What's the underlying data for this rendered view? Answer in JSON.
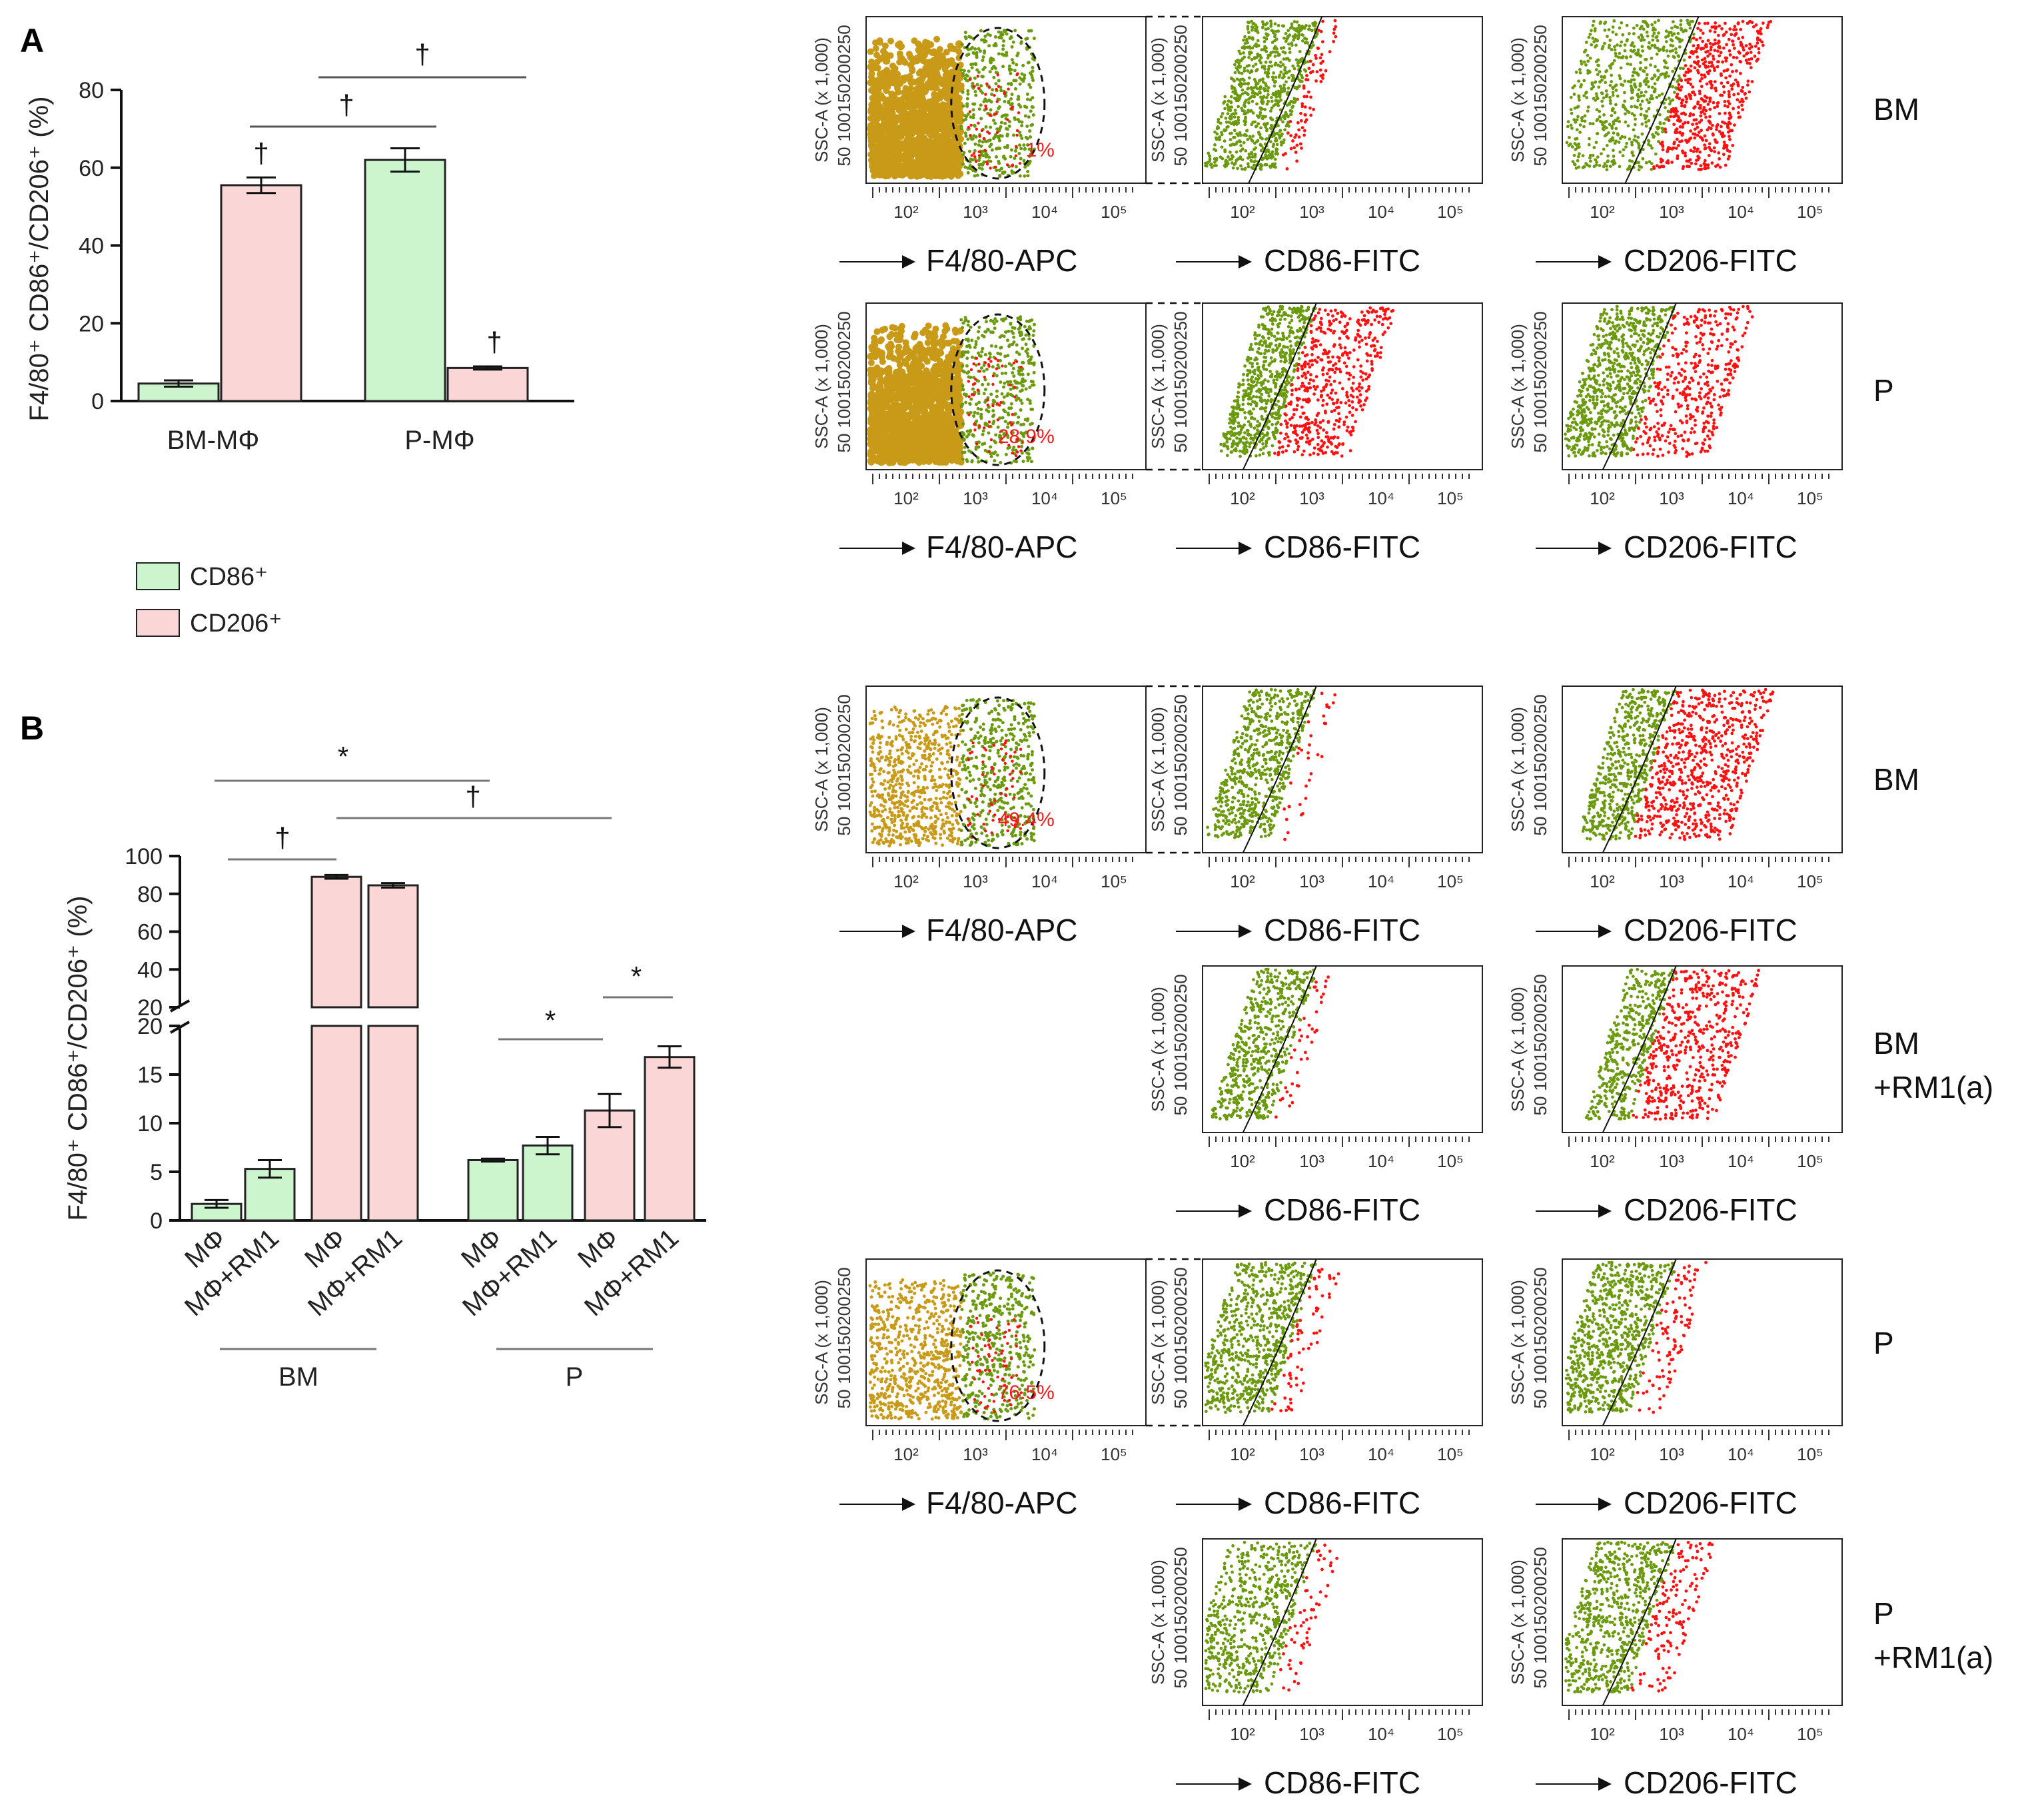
{
  "figure": {
    "panel_a_letter": "A",
    "panel_b_letter": "B",
    "legend": {
      "cd86": {
        "label": "CD86⁺",
        "color": "#cdf5cd"
      },
      "cd206": {
        "label": "CD206⁺",
        "color": "#fbd6d6"
      }
    },
    "colors": {
      "cd86_fill": "#cdf5cd",
      "cd206_fill": "#fbd6d6",
      "gate_population": "#c99a17",
      "positive_green": "#6b9a0e",
      "positive_red": "#ff1111",
      "annotation_red": "#ee1c1c"
    },
    "flow_axis": {
      "y_label": "SSC-A (x 1,000)",
      "y_ticks": [
        "50",
        "100",
        "150",
        "200",
        "250"
      ],
      "x_ticks": [
        "10²",
        "10³",
        "10⁴",
        "10⁵"
      ],
      "labels": {
        "f480": "F4/80-APC",
        "cd86": "CD86-FITC",
        "cd206": "CD206-FITC"
      }
    },
    "flow_rows": [
      {
        "label": "BM",
        "f480_percent": "1%"
      },
      {
        "label": "P",
        "f480_percent": "28.9%"
      },
      {
        "label": "BM",
        "f480_percent": "49.4%"
      },
      {
        "label": "BM\n+RM1(a)",
        "line1": "BM",
        "line2": "+RM1(a)"
      },
      {
        "label": "P",
        "f480_percent": "76.5%"
      },
      {
        "label": "P\n+RM1(a)",
        "line1": "P",
        "line2": "+RM1(a)"
      }
    ]
  },
  "chart_data": [
    {
      "type": "bar",
      "panel": "A",
      "title": "",
      "ylabel": "F4/80⁺ CD86⁺/CD206⁺ (%)",
      "ylim": [
        0,
        80
      ],
      "yticks": [
        "0",
        "20",
        "40",
        "60",
        "80"
      ],
      "categories": [
        "BM-MΦ",
        "P-MΦ"
      ],
      "series": [
        {
          "name": "CD86⁺",
          "values": [
            4.5,
            62
          ],
          "errors": [
            0.8,
            3
          ]
        },
        {
          "name": "CD206⁺",
          "values": [
            55.5,
            8.5
          ],
          "errors": [
            2,
            0.4
          ]
        }
      ],
      "significance": [
        {
          "symbol": "†",
          "between": "BM CD206⁺ vs BM CD86⁺"
        },
        {
          "symbol": "†",
          "between": "P CD206⁺ vs P CD86⁺"
        },
        {
          "symbol": "†",
          "between": "BM CD86⁺ vs P CD86⁺"
        },
        {
          "symbol": "†",
          "between": "BM CD206⁺ vs P CD206⁺"
        }
      ]
    },
    {
      "type": "bar",
      "panel": "B",
      "title": "",
      "ylabel": "F4/80⁺ CD86⁺/CD206⁺ (%)",
      "y_break": [
        20,
        20
      ],
      "ylim_lower": [
        0,
        20
      ],
      "ylim_upper": [
        20,
        100
      ],
      "yticks_lower": [
        "0",
        "5",
        "10",
        "15",
        "20"
      ],
      "yticks_upper": [
        "20",
        "40",
        "60",
        "80",
        "100"
      ],
      "categories": [
        "MΦ",
        "MΦ+RM1",
        "MΦ",
        "MΦ+RM1",
        "MΦ",
        "MΦ+RM1",
        "MΦ",
        "MΦ+RM1"
      ],
      "groups": [
        "BM",
        "P"
      ],
      "bars": [
        {
          "group": "BM",
          "marker": "CD86⁺",
          "label": "MΦ",
          "value": 1.7,
          "error": 0.4
        },
        {
          "group": "BM",
          "marker": "CD86⁺",
          "label": "MΦ+RM1",
          "value": 5.3,
          "error": 0.9
        },
        {
          "group": "BM",
          "marker": "CD206⁺",
          "label": "MΦ",
          "value": 89,
          "error": 1
        },
        {
          "group": "BM",
          "marker": "CD206⁺",
          "label": "MΦ+RM1",
          "value": 84.5,
          "error": 1.2
        },
        {
          "group": "P",
          "marker": "CD86⁺",
          "label": "MΦ",
          "value": 6.2,
          "error": 0.15
        },
        {
          "group": "P",
          "marker": "CD86⁺",
          "label": "MΦ+RM1",
          "value": 7.7,
          "error": 0.9
        },
        {
          "group": "P",
          "marker": "CD206⁺",
          "label": "MΦ",
          "value": 11.3,
          "error": 1.7
        },
        {
          "group": "P",
          "marker": "CD206⁺",
          "label": "MΦ+RM1",
          "value": 16.8,
          "error": 1.1
        }
      ],
      "significance": [
        {
          "symbol": "*",
          "between": "BM MΦ CD86⁺ vs P MΦ CD86⁺"
        },
        {
          "symbol": "†",
          "between": "BM MΦ CD86⁺ vs BM MΦ CD206⁺"
        },
        {
          "symbol": "†",
          "between": "BM MΦ CD206⁺ vs P MΦ CD206⁺"
        },
        {
          "symbol": "*",
          "between": "P MΦ CD86⁺ vs P MΦ CD206⁺"
        },
        {
          "symbol": "*",
          "between": "P MΦ CD206⁺ vs P MΦ+RM1 CD206⁺"
        }
      ]
    }
  ]
}
